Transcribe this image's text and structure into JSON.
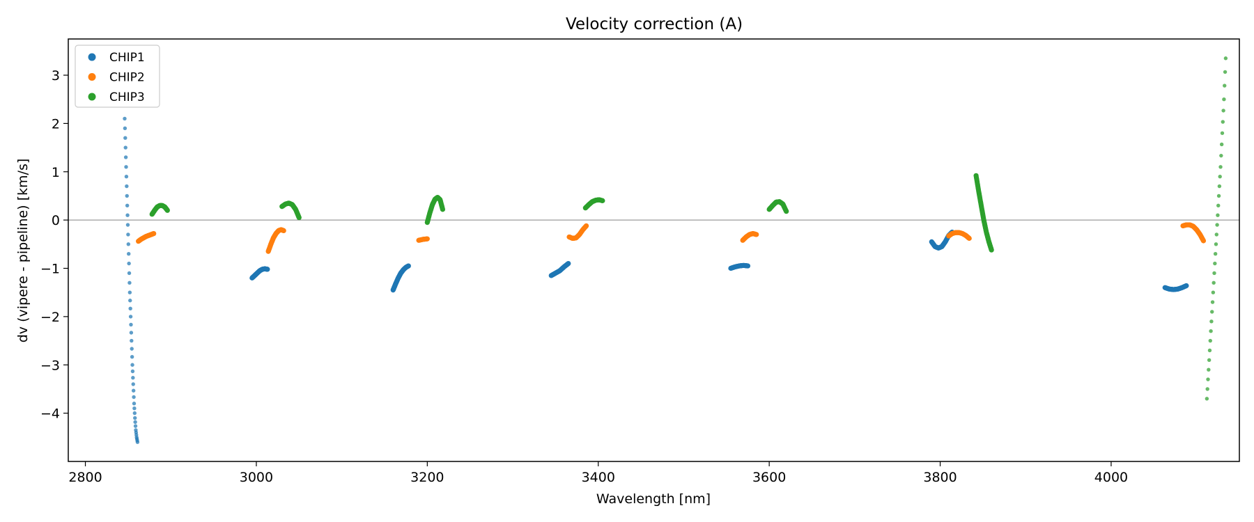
{
  "chart_data": {
    "type": "scatter",
    "title": "Velocity correction (A)",
    "xlabel": "Wavelength [nm]",
    "ylabel": "dv (vipere - pipeline) [km/s]",
    "xlim": [
      2780,
      4150
    ],
    "ylim": [
      -5.0,
      3.75
    ],
    "xticks": [
      2800,
      3000,
      3200,
      3400,
      3600,
      3800,
      4000
    ],
    "yticks": [
      3,
      2,
      1,
      0,
      -1,
      -2,
      -3,
      -4
    ],
    "xtick_labels": [
      "2800",
      "3000",
      "3200",
      "3400",
      "3600",
      "3800",
      "4000"
    ],
    "ytick_labels": [
      "3",
      "2",
      "1",
      "0",
      "−1",
      "−2",
      "−3",
      "−4"
    ],
    "hline": 0,
    "legend_position": "top-left",
    "series": [
      {
        "name": "CHIP1",
        "color": "#1f77b4",
        "segments": [
          {
            "x": [
              2846,
              2847,
              2848,
              2849,
              2850,
              2851,
              2852,
              2853,
              2854,
              2855,
              2856,
              2857,
              2858,
              2859,
              2860,
              2861
            ],
            "y": [
              2.1,
              1.5,
              0.9,
              0.3,
              -0.3,
              -0.9,
              -1.5,
              -2.0,
              -2.5,
              -3.0,
              -3.4,
              -3.8,
              -4.1,
              -4.35,
              -4.5,
              -4.6
            ],
            "sparse": true
          },
          {
            "x": [
              2995,
              2998,
              3001,
              3004,
              3007,
              3010,
              3013
            ],
            "y": [
              -1.2,
              -1.15,
              -1.1,
              -1.05,
              -1.02,
              -1.01,
              -1.02
            ]
          },
          {
            "x": [
              3160,
              3163,
              3166,
              3169,
              3172,
              3175,
              3178
            ],
            "y": [
              -1.45,
              -1.32,
              -1.2,
              -1.1,
              -1.03,
              -0.98,
              -0.95
            ]
          },
          {
            "x": [
              3345,
              3350,
              3355,
              3360,
              3365
            ],
            "y": [
              -1.15,
              -1.1,
              -1.05,
              -0.97,
              -0.9
            ]
          },
          {
            "x": [
              3555,
              3560,
              3565,
              3570,
              3575
            ],
            "y": [
              -1.0,
              -0.97,
              -0.95,
              -0.94,
              -0.95
            ]
          },
          {
            "x": [
              3790,
              3794,
              3798,
              3802,
              3806,
              3810,
              3814
            ],
            "y": [
              -0.45,
              -0.55,
              -0.58,
              -0.55,
              -0.45,
              -0.32,
              -0.25
            ]
          },
          {
            "x": [
              4063,
              4068,
              4073,
              4078,
              4083,
              4088
            ],
            "y": [
              -1.4,
              -1.43,
              -1.44,
              -1.43,
              -1.4,
              -1.36
            ]
          }
        ]
      },
      {
        "name": "CHIP2",
        "color": "#ff7f0e",
        "segments": [
          {
            "x": [
              2862,
              2865,
              2868,
              2871,
              2874,
              2877,
              2880
            ],
            "y": [
              -0.44,
              -0.4,
              -0.37,
              -0.34,
              -0.32,
              -0.3,
              -0.28
            ]
          },
          {
            "x": [
              3014,
              3017,
              3020,
              3023,
              3026,
              3029,
              3032
            ],
            "y": [
              -0.65,
              -0.5,
              -0.37,
              -0.28,
              -0.22,
              -0.2,
              -0.22
            ]
          },
          {
            "x": [
              3190,
              3195,
              3200
            ],
            "y": [
              -0.42,
              -0.4,
              -0.39
            ]
          },
          {
            "x": [
              3366,
              3370,
              3374,
              3378,
              3382,
              3386
            ],
            "y": [
              -0.35,
              -0.38,
              -0.37,
              -0.3,
              -0.2,
              -0.12
            ]
          },
          {
            "x": [
              3569,
              3573,
              3577,
              3581,
              3585
            ],
            "y": [
              -0.42,
              -0.35,
              -0.3,
              -0.28,
              -0.3
            ]
          },
          {
            "x": [
              3810,
              3814,
              3818,
              3822,
              3826,
              3830,
              3834
            ],
            "y": [
              -0.33,
              -0.28,
              -0.26,
              -0.26,
              -0.28,
              -0.32,
              -0.38
            ]
          },
          {
            "x": [
              4084,
              4088,
              4092,
              4096,
              4100,
              4104,
              4108
            ],
            "y": [
              -0.12,
              -0.1,
              -0.1,
              -0.13,
              -0.2,
              -0.3,
              -0.43
            ]
          }
        ]
      },
      {
        "name": "CHIP3",
        "color": "#2ca02c",
        "segments": [
          {
            "x": [
              2878,
              2881,
              2884,
              2887,
              2890,
              2893,
              2896
            ],
            "y": [
              0.12,
              0.2,
              0.27,
              0.3,
              0.3,
              0.27,
              0.2
            ]
          },
          {
            "x": [
              3030,
              3034,
              3038,
              3042,
              3046,
              3050
            ],
            "y": [
              0.28,
              0.33,
              0.35,
              0.32,
              0.22,
              0.05
            ]
          },
          {
            "x": [
              3200,
              3203,
              3206,
              3209,
              3212,
              3215,
              3218
            ],
            "y": [
              -0.05,
              0.15,
              0.32,
              0.43,
              0.47,
              0.42,
              0.22
            ]
          },
          {
            "x": [
              3385,
              3389,
              3393,
              3397,
              3401,
              3405
            ],
            "y": [
              0.25,
              0.32,
              0.38,
              0.41,
              0.42,
              0.4
            ]
          },
          {
            "x": [
              3600,
              3604,
              3608,
              3612,
              3616,
              3620
            ],
            "y": [
              0.22,
              0.3,
              0.37,
              0.38,
              0.33,
              0.18
            ]
          },
          {
            "x": [
              3842,
              3845,
              3848,
              3851,
              3854,
              3857,
              3860
            ],
            "y": [
              0.92,
              0.6,
              0.3,
              0.0,
              -0.25,
              -0.45,
              -0.62
            ]
          },
          {
            "x": [
              4112,
              4114,
              4116,
              4118,
              4120,
              4122,
              4124,
              4126,
              4128,
              4130,
              4132,
              4134
            ],
            "y": [
              -3.7,
              -3.1,
              -2.5,
              -1.9,
              -1.3,
              -0.7,
              -0.1,
              0.5,
              1.1,
              1.8,
              2.5,
              3.35
            ],
            "sparse": true
          }
        ]
      }
    ]
  }
}
